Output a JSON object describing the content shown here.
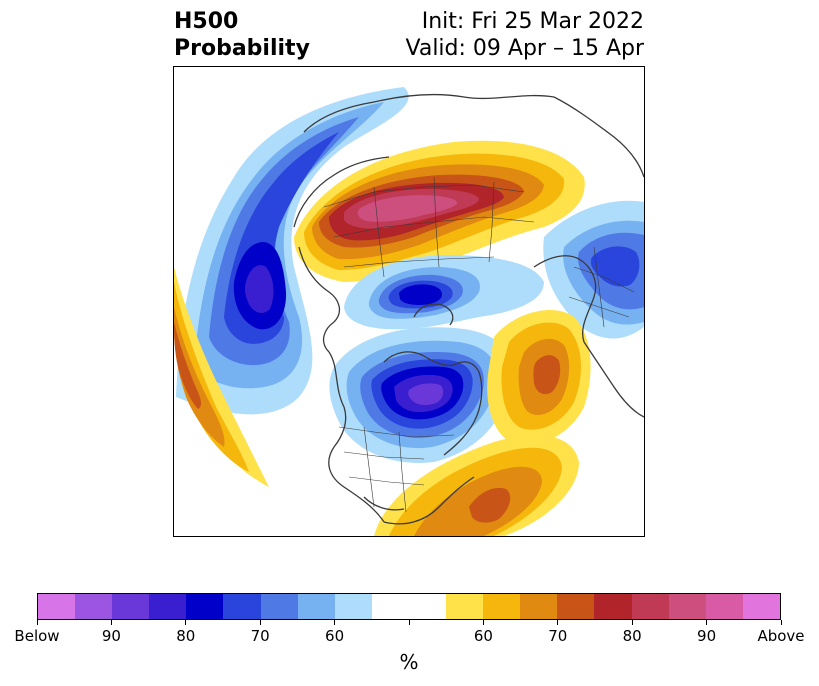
{
  "header": {
    "title_line1": "H500",
    "title_line2": "Probability",
    "init_text": "Init: Fri 25 Mar 2022",
    "valid_text": "Valid: 09 Apr – 15 Apr"
  },
  "colorbar": {
    "unit_label": "%",
    "colors": [
      "#d775e8",
      "#9b55e0",
      "#6a38d8",
      "#3a1fd0",
      "#0000c8",
      "#2a45dc",
      "#4f7ae6",
      "#76b1f2",
      "#aedcfb",
      "#ffffff",
      "#ffe24a",
      "#f5b70b",
      "#e08a12",
      "#c85417",
      "#b0242a",
      "#c03a55",
      "#cc4f7e",
      "#d95aa5",
      "#e275dd"
    ],
    "tick_labels": [
      "Below",
      "90",
      "80",
      "70",
      "60",
      "",
      "60",
      "70",
      "80",
      "90",
      "Above"
    ]
  },
  "map": {
    "projection": "north-polar-stereographic",
    "anomaly_centers": [
      {
        "name": "siberia-above",
        "category": "Above",
        "peak": "80-90"
      },
      {
        "name": "north-pacific-below",
        "category": "Below",
        "peak": "80"
      },
      {
        "name": "arctic-below",
        "category": "Below",
        "peak": "80"
      },
      {
        "name": "hudson-bay-below",
        "category": "Below",
        "peak": "90"
      },
      {
        "name": "north-atlantic-above",
        "category": "Above",
        "peak": "70"
      },
      {
        "name": "west-atlantic-above",
        "category": "Above",
        "peak": "70"
      },
      {
        "name": "europe-below",
        "category": "Below",
        "peak": "70"
      },
      {
        "name": "east-pacific-above",
        "category": "Above",
        "peak": "70"
      }
    ]
  }
}
